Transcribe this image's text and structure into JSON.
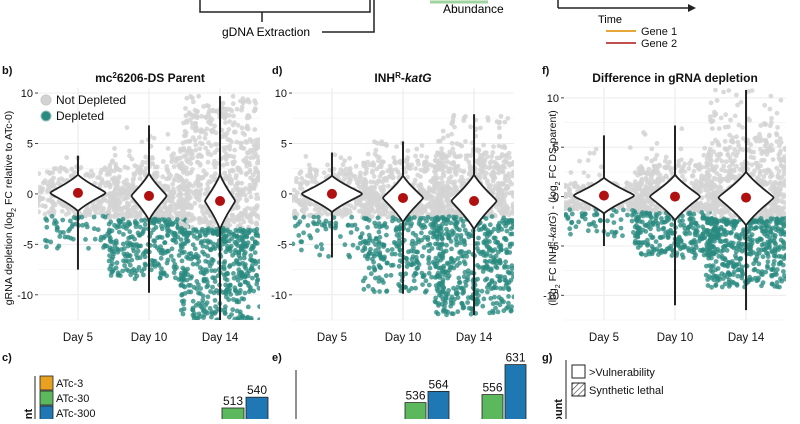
{
  "top": {
    "gdna_label": "gDNA Extraction",
    "abundance_label": "Abundance",
    "time_label": "Time",
    "gene_legend": [
      {
        "label": "Gene 1",
        "color": "#e8a838"
      },
      {
        "label": "Gene 2",
        "color": "#c0504d"
      }
    ]
  },
  "legend_b": [
    {
      "label": "Not Depleted",
      "color": "#d3d3d3"
    },
    {
      "label": "Depleted",
      "color": "#2a8a80"
    }
  ],
  "chart_data": [
    {
      "panel": "b)",
      "type": "scatter",
      "title": "mc²6206-DS Parent",
      "title_parts": [
        "mc",
        "2",
        "6206-DS Parent"
      ],
      "ylabel": "gRNA depletion (log₂ FC relative to ATc-0)",
      "ylabel_parts": [
        "gRNA depletion (log",
        "2",
        " FC relative to ATc-0)"
      ],
      "categories": [
        "Day 5",
        "Day 10",
        "Day 14"
      ],
      "ylim": [
        -12.5,
        10.5
      ],
      "yticks": [
        10,
        5,
        0,
        -5,
        -10
      ],
      "median": [
        0.1,
        -0.2,
        -0.7
      ],
      "depleted_threshold": [
        -2.2,
        -2.5,
        -3.4
      ],
      "not_depleted_range": [
        [
          -2.2,
          2.5
        ],
        [
          -2.5,
          3.2
        ],
        [
          -3.4,
          7.5
        ]
      ],
      "depleted_range": [
        [
          -5.5,
          -2.2
        ],
        [
          -8.5,
          -2.5
        ],
        [
          -12.5,
          -3.4
        ]
      ],
      "line_range": [
        [
          -7.5,
          3.8
        ],
        [
          -9.8,
          6.8
        ],
        [
          -12.5,
          9.7
        ]
      ],
      "violin_halfwidth_peak": [
        0.55,
        0.35,
        0.3
      ],
      "series": [
        {
          "name": "Not Depleted"
        },
        {
          "name": "Depleted"
        }
      ]
    },
    {
      "panel": "d)",
      "type": "scatter",
      "title": "INHᴿ-katG",
      "title_parts": [
        "INH",
        "R",
        "-",
        "katG"
      ],
      "ylabel": "",
      "categories": [
        "Day 5",
        "Day 10",
        "Day 14"
      ],
      "ylim": [
        -12.5,
        10.5
      ],
      "yticks": [
        10,
        5,
        0,
        -5,
        -10
      ],
      "median": [
        0.0,
        -0.4,
        -0.7
      ],
      "depleted_threshold": [
        -2.3,
        -2.3,
        -2.2
      ],
      "not_depleted_range": [
        [
          -2.3,
          2.5
        ],
        [
          -2.3,
          3.3
        ],
        [
          -2.2,
          3.8
        ]
      ],
      "depleted_range": [
        [
          -6.3,
          -2.3
        ],
        [
          -9.8,
          -2.3
        ],
        [
          -12.0,
          -2.2
        ]
      ],
      "line_range": [
        [
          -6.3,
          4.1
        ],
        [
          -9.9,
          5.2
        ],
        [
          -12.0,
          7.9
        ]
      ],
      "violin_halfwidth_peak": [
        0.6,
        0.4,
        0.45
      ],
      "series": [
        {
          "name": "Not Depleted"
        },
        {
          "name": "Depleted"
        }
      ]
    },
    {
      "panel": "f)",
      "type": "scatter",
      "title": "Difference in gRNA depletion",
      "ylabel": "(log₂ FC INHᴿ-katG) - (log₂ FC DS-parent)",
      "ylabel_parts": [
        "(log",
        "2",
        " FC INH",
        "R",
        "-",
        "katG",
        ") - (log",
        "2",
        " FC DS-parent)"
      ],
      "categories": [
        "Day 5",
        "Day 10",
        "Day 14"
      ],
      "ylim": [
        -12.5,
        11.0
      ],
      "yticks": [
        10,
        5,
        0,
        -5,
        -10
      ],
      "median": [
        0.1,
        0.0,
        -0.1
      ],
      "depleted_threshold": [
        -1.3,
        -1.6,
        -2.2
      ],
      "not_depleted_range": [
        [
          -1.3,
          1.4
        ],
        [
          -1.6,
          3.2
        ],
        [
          -2.2,
          5.5
        ]
      ],
      "depleted_range": [
        [
          -4.2,
          -1.3
        ],
        [
          -6.2,
          -1.6
        ],
        [
          -9.2,
          -2.2
        ]
      ],
      "line_range": [
        [
          -5.0,
          6.2
        ],
        [
          -11.0,
          7.2
        ],
        [
          -11.5,
          10.8
        ]
      ],
      "violin_halfwidth_peak": [
        0.6,
        0.5,
        0.55
      ],
      "series": [
        {
          "name": "Not Depleted"
        },
        {
          "name": "Depleted"
        }
      ]
    },
    {
      "panel": "c)",
      "type": "bar",
      "legend": [
        {
          "label": "ATc-3",
          "color": "#e8a020"
        },
        {
          "label": "ATc-30",
          "color": "#5cb85c"
        },
        {
          "label": "ATc-300",
          "color": "#1f77b4"
        }
      ],
      "series": [
        {
          "name": "ATc-30",
          "values": [
            513
          ]
        },
        {
          "name": "ATc-300",
          "values": [
            540
          ]
        }
      ],
      "data_labels": [
        "513",
        "540"
      ],
      "ylabel_fragment": "nt"
    },
    {
      "panel": "e)",
      "type": "bar",
      "groups": [
        {
          "values": [
            536,
            564
          ]
        },
        {
          "values": [
            556,
            631
          ]
        }
      ],
      "data_labels": [
        "536",
        "564",
        "556",
        "631"
      ],
      "colors": [
        "#5cb85c",
        "#1f77b4"
      ]
    },
    {
      "panel": "g)",
      "type": "bar",
      "legend": [
        {
          "label": ">Vulnerability",
          "pattern": "open"
        },
        {
          "label": "Synthetic lethal",
          "pattern": "hatched"
        }
      ],
      "ylabel_fragment": "count"
    }
  ]
}
